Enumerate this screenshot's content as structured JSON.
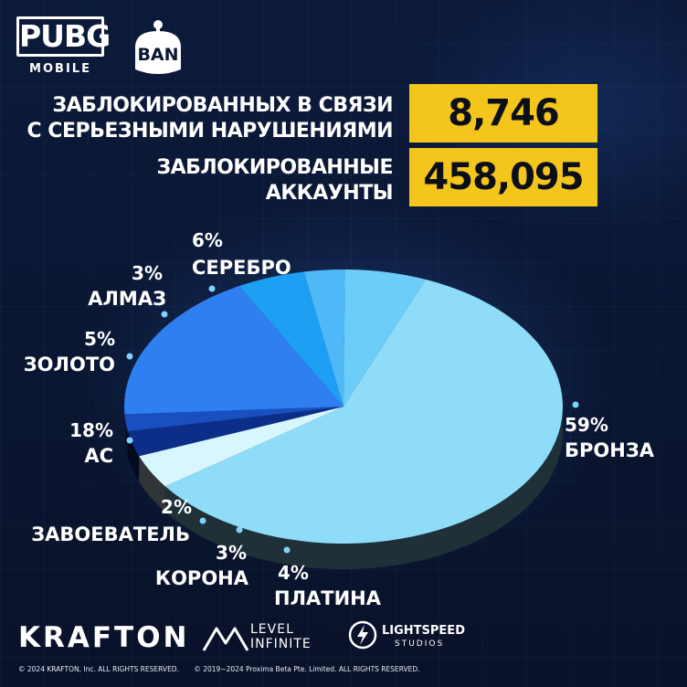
{
  "logos": {
    "pubg": "PUBG",
    "pubg_sub": "MOBILE",
    "ban": "BAN",
    "krafton": "KRAFTON",
    "level_infinite": [
      "LEVEL",
      "INFINITE"
    ],
    "lightspeed": "LIGHTSPEED",
    "lightspeed_sub": "STUDIOS"
  },
  "stats": [
    {
      "label_lines": [
        "ЗАБЛОКИРОВАННЫХ В СВЯЗИ",
        "С СЕРЬЕЗНЫМИ НАРУШЕНИЯМИ"
      ],
      "value": "8,746"
    },
    {
      "label_lines": [
        "ЗАБЛОКИРОВАННЫЕ",
        "АККАУНТЫ"
      ],
      "value": "458,095"
    }
  ],
  "chart_data": {
    "type": "pie",
    "title": "",
    "slices": [
      {
        "label": "БРОНЗА",
        "value": 59,
        "display": "59%",
        "color": "#8edcf8"
      },
      {
        "label": "ПЛАТИНА",
        "value": 4,
        "display": "4%",
        "color": "#d8f6fd"
      },
      {
        "label": "КОРОНА",
        "value": 3,
        "display": "3%",
        "color": "#0d2e88"
      },
      {
        "label": "ЗАВОЕВАТЕЛЬ",
        "value": 2,
        "display": "2%",
        "color": "#1a4fc0"
      },
      {
        "label": "АС",
        "value": 18,
        "display": "18%",
        "color": "#2f7ff0"
      },
      {
        "label": "ЗОЛОТО",
        "value": 5,
        "display": "5%",
        "color": "#1da0f4"
      },
      {
        "label": "АЛМАЗ",
        "value": 3,
        "display": "3%",
        "color": "#4fb8f6"
      },
      {
        "label": "СЕРЕБРО",
        "value": 6,
        "display": "6%",
        "color": "#6ccdf8"
      }
    ]
  },
  "footer": {
    "copyright": [
      "© 2024 KRAFTON, Inc. ALL RIGHTS RESERVED.",
      "© 2019~2024 Proxima Beta Pte. Limited. ALL RIGHTS RESERVED."
    ]
  }
}
